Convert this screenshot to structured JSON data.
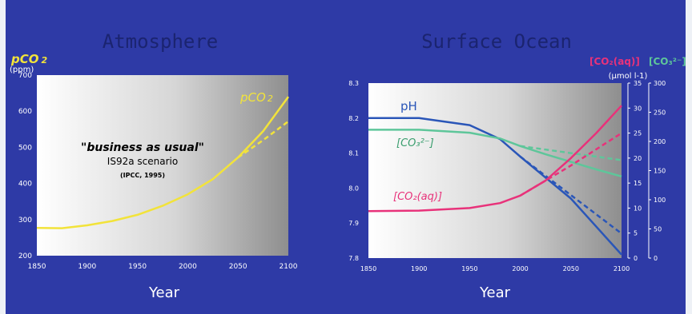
{
  "colors": {
    "slide_bg": "#2e3aa6",
    "margin_bg": "#eef1f6",
    "atm_yellow": "#f2e33a",
    "ph_blue": "#2a56b8",
    "co3_green": "#5ec69a",
    "co2aq_pink": "#e8327a",
    "axis_white": "#ffffff",
    "title_dark": "#1b2470"
  },
  "chart_data": [
    {
      "type": "line",
      "title": "Atmosphere",
      "ylabel_main": "pCO",
      "ylabel_sub": "2",
      "yunit": "(ppm)",
      "xlabel": "Year",
      "xlim": [
        1850,
        2100
      ],
      "ylim": [
        200,
        700
      ],
      "xticks": [
        1850,
        1900,
        1950,
        2000,
        2050,
        2100
      ],
      "yticks": [
        200,
        300,
        400,
        500,
        600,
        700
      ],
      "grid": false,
      "annotation_title": "\"business as usual\"",
      "annotation_line1": "IS92a scenario",
      "annotation_line2": "(IPCC, 1995)",
      "series_label_main": "pCO",
      "series_label_sub": "2",
      "series": [
        {
          "style": "solid",
          "x": [
            1850,
            1875,
            1900,
            1925,
            1950,
            1975,
            2000,
            2025,
            2050,
            2075,
            2100
          ],
          "y": [
            277,
            276,
            284,
            296,
            313,
            338,
            370,
            412,
            472,
            545,
            640
          ]
        },
        {
          "style": "dashed",
          "x": [
            2050,
            2075,
            2100
          ],
          "y": [
            472,
            520,
            572
          ]
        }
      ]
    },
    {
      "type": "line",
      "title": "Surface Ocean",
      "xlabel": "Year",
      "xlim": [
        1850,
        2100
      ],
      "ylim": [
        7.8,
        8.3
      ],
      "xticks": [
        1850,
        1900,
        1950,
        2000,
        2050,
        2100
      ],
      "yticks": [
        7.8,
        7.9,
        8.0,
        8.1,
        8.2,
        8.3
      ],
      "right_unit": "(μmol l-1)",
      "right_header_co2": "[CO₂(aq)]",
      "right_header_co3": "[CO₃²⁻]",
      "right_axis_co2": {
        "ylim": [
          0,
          35
        ],
        "ticks": [
          0,
          5,
          10,
          15,
          20,
          25,
          30,
          35
        ]
      },
      "right_axis_co3": {
        "ylim": [
          0,
          300
        ],
        "ticks": [
          0,
          50,
          100,
          150,
          200,
          250,
          300
        ]
      },
      "label_ph": "pH",
      "label_co3": "[CO₃²⁻]",
      "label_co2": "[CO₂(aq)]",
      "series": [
        {
          "name": "pH",
          "axis": "ph",
          "style": "solid",
          "x": [
            1850,
            1900,
            1950,
            1980,
            2000,
            2025,
            2050,
            2075,
            2100
          ],
          "y": [
            8.2,
            8.2,
            8.18,
            8.14,
            8.09,
            8.03,
            7.97,
            7.89,
            7.81
          ]
        },
        {
          "name": "pH",
          "axis": "ph",
          "style": "dashed",
          "x": [
            2000,
            2050,
            2100
          ],
          "y": [
            8.09,
            7.98,
            7.87
          ]
        },
        {
          "name": "[CO₃²⁻]",
          "axis": "co3",
          "style": "solid",
          "x": [
            1850,
            1900,
            1950,
            1980,
            2000,
            2025,
            2050,
            2075,
            2100
          ],
          "y": [
            220,
            220,
            215,
            205,
            192,
            178,
            165,
            152,
            140
          ]
        },
        {
          "name": "[CO₃²⁻]",
          "axis": "co3",
          "style": "dashed",
          "x": [
            2000,
            2050,
            2100
          ],
          "y": [
            192,
            180,
            168
          ]
        },
        {
          "name": "[CO₂(aq)]",
          "axis": "co2",
          "style": "solid",
          "x": [
            1850,
            1900,
            1950,
            1980,
            2000,
            2025,
            2050,
            2075,
            2100
          ],
          "y": [
            9.4,
            9.5,
            10.0,
            11.0,
            12.5,
            15.5,
            20.0,
            25.0,
            30.5
          ]
        },
        {
          "name": "[CO₂(aq)]",
          "axis": "co2",
          "style": "dashed",
          "x": [
            2000,
            2050,
            2100
          ],
          "y": [
            12.5,
            18.5,
            25.0
          ]
        }
      ]
    }
  ]
}
